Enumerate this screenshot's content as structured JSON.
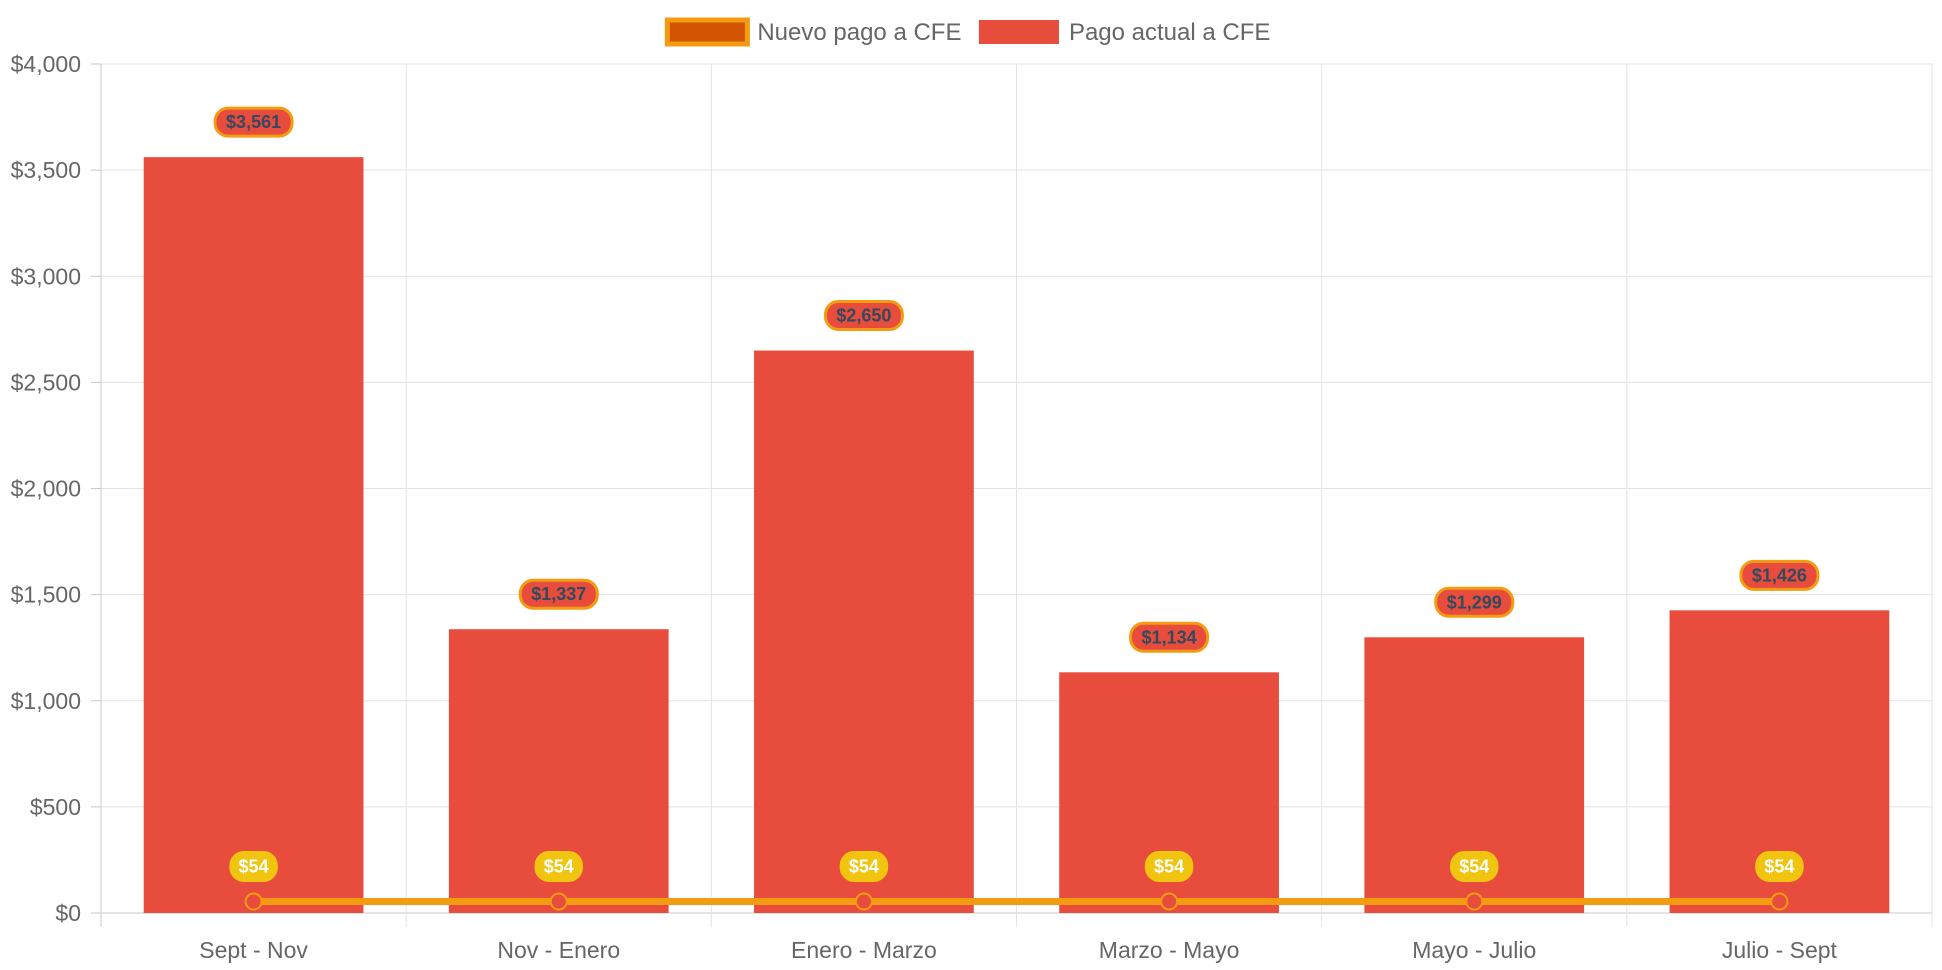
{
  "chart_data": {
    "type": "bar",
    "categories": [
      "Sept - Nov",
      "Nov - Enero",
      "Enero - Marzo",
      "Marzo - Mayo",
      "Mayo - Julio",
      "Julio - Sept"
    ],
    "series": [
      {
        "name": "Nuevo pago a CFE",
        "chart_type": "line",
        "values": [
          54,
          54,
          54,
          54,
          54,
          54
        ],
        "data_labels": [
          "$54",
          "$54",
          "$54",
          "$54",
          "$54",
          "$54"
        ],
        "color": "#f39c12",
        "fill_color": "#d35400",
        "point_color": "#e74c3c",
        "label_bg": "#f1c40f",
        "label_text_color": "#ffffff"
      },
      {
        "name": "Pago actual a CFE",
        "chart_type": "bar",
        "values": [
          3561,
          1337,
          2650,
          1134,
          1299,
          1426
        ],
        "data_labels": [
          "$3,561",
          "$1,337",
          "$2,650",
          "$1,134",
          "$1,299",
          "$1,426"
        ],
        "color": "#e74c3c",
        "label_bg": "#e74c3c",
        "label_border": "#f39c12",
        "label_text_color": "#34495e"
      }
    ],
    "y_ticks": [
      "$0",
      "$500",
      "$1,000",
      "$1,500",
      "$2,000",
      "$2,500",
      "$3,000",
      "$3,500",
      "$4,000"
    ],
    "ylim": [
      0,
      4000
    ],
    "y_step": 500,
    "grid": true,
    "legend_position": "top",
    "title": "",
    "xlabel": "",
    "ylabel": ""
  }
}
